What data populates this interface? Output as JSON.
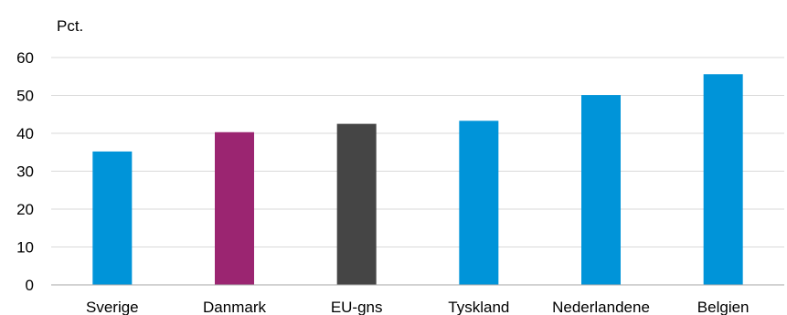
{
  "chart_data": {
    "type": "bar",
    "unit_label": "Pct.",
    "categories": [
      "Sverige",
      "Danmark",
      "EU-gns",
      "Tyskland",
      "Nederlandene",
      "Belgien"
    ],
    "values": [
      35.2,
      40.3,
      42.5,
      43.3,
      50.1,
      55.6
    ],
    "colors": [
      "#0094d9",
      "#9b2571",
      "#454545",
      "#0094d9",
      "#0094d9",
      "#0094d9"
    ],
    "ylim": [
      0,
      60
    ],
    "yticks": [
      0,
      10,
      20,
      30,
      40,
      50,
      60
    ],
    "grid": true
  }
}
